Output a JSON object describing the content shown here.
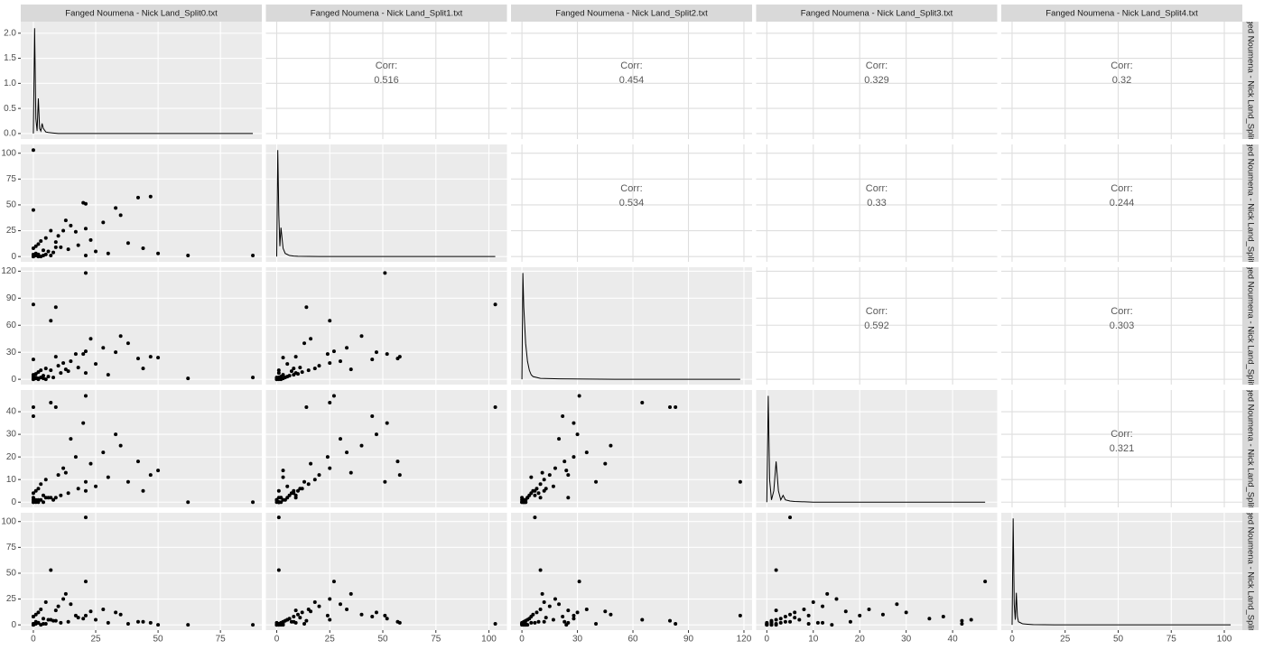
{
  "chart_data": {
    "type": "pairs",
    "variables": [
      "Fanged Noumena - Nick Land_Split0.txt",
      "Fanged Noumena - Nick Land_Split1.txt",
      "Fanged Noumena - Nick Land_Split2.txt",
      "Fanged Noumena - Nick Land_Split3.txt",
      "Fanged Noumena - Nick Land_Split4.txt"
    ],
    "axes": [
      {
        "lim": [
          -5.05,
          91.6
        ],
        "ticks": [
          0,
          25,
          50,
          75
        ]
      },
      {
        "lim": [
          -5.1,
          108.5
        ],
        "ticks": [
          0,
          25,
          50,
          75,
          100
        ]
      },
      {
        "lim": [
          -5.9,
          124.4
        ],
        "ticks": [
          0,
          30,
          60,
          90,
          120
        ]
      },
      {
        "lim": [
          -2.3,
          49.6
        ],
        "ticks": [
          0,
          10,
          20,
          30,
          40
        ]
      },
      {
        "lim": [
          -5.1,
          108.5
        ],
        "ticks": [
          0,
          25,
          50,
          75,
          100
        ]
      }
    ],
    "diag_ylim": [
      -0.11,
      2.23
    ],
    "diag_yticks": [
      {
        "value": 0,
        "label": "0.0"
      },
      {
        "value": 0.5,
        "label": "0.5"
      },
      {
        "value": 1,
        "label": "1.0"
      },
      {
        "value": 1.5,
        "label": "1.5"
      },
      {
        "value": 2,
        "label": "2.0"
      }
    ],
    "densities": [
      {
        "x": [
          0,
          0.5,
          1,
          1.5,
          2,
          2.5,
          3,
          3.5,
          4,
          5,
          6,
          8,
          10,
          20,
          40,
          88
        ],
        "y": [
          0,
          2.1,
          0.3,
          0.05,
          0.7,
          0.1,
          0.05,
          0.2,
          0.1,
          0.03,
          0.02,
          0.01,
          0,
          0,
          0,
          0
        ]
      },
      {
        "x": [
          0,
          0.5,
          1,
          1.5,
          2,
          3,
          4,
          5,
          6,
          8,
          10,
          20,
          50,
          103
        ],
        "y": [
          0,
          103,
          40,
          10,
          28,
          8,
          3,
          2,
          1,
          0.5,
          0.3,
          0,
          0,
          0
        ]
      },
      {
        "x": [
          0,
          0.5,
          1,
          2,
          3,
          4,
          5,
          6,
          8,
          10,
          20,
          50,
          118
        ],
        "y": [
          0,
          118,
          80,
          40,
          20,
          10,
          5,
          3,
          2,
          1,
          0.5,
          0,
          0
        ]
      },
      {
        "x": [
          0,
          0.3,
          0.6,
          1,
          1.5,
          2,
          2.5,
          3,
          3.5,
          4,
          5,
          6,
          10,
          20,
          47
        ],
        "y": [
          0,
          47,
          10,
          1,
          5,
          18,
          5,
          1,
          3,
          1,
          0.5,
          0.3,
          0,
          0,
          0
        ]
      },
      {
        "x": [
          0,
          0.5,
          1,
          1.5,
          2,
          2.5,
          3,
          4,
          5,
          8,
          10,
          20,
          50,
          103
        ],
        "y": [
          0,
          103,
          20,
          5,
          31,
          8,
          3,
          2,
          1,
          0.5,
          0.2,
          0,
          0,
          0
        ]
      }
    ],
    "corr_label": "Corr:",
    "correlations": [
      [
        0.516,
        0.454,
        0.329,
        0.32
      ],
      [
        0.534,
        0.33,
        0.244
      ],
      [
        0.592,
        0.303
      ],
      [
        0.321
      ]
    ],
    "observations": [
      [
        0,
        103,
        83,
        42,
        1
      ],
      [
        21,
        51,
        118,
        9,
        9
      ],
      [
        88,
        1,
        2,
        0,
        0
      ],
      [
        62,
        1,
        1,
        0,
        0
      ],
      [
        21,
        27,
        31,
        47,
        42
      ],
      [
        21,
        1,
        7,
        5,
        104
      ],
      [
        7,
        1,
        10,
        2,
        53
      ],
      [
        7,
        25,
        65,
        44,
        5
      ],
      [
        42,
        57,
        23,
        18,
        3
      ],
      [
        47,
        58,
        25,
        12,
        2
      ],
      [
        9,
        14,
        80,
        42,
        4
      ],
      [
        0,
        45,
        22,
        38,
        8
      ],
      [
        33,
        47,
        30,
        30,
        12
      ],
      [
        35,
        40,
        48,
        25,
        10
      ],
      [
        20,
        52,
        28,
        35,
        6
      ],
      [
        28,
        33,
        35,
        22,
        15
      ],
      [
        15,
        30,
        20,
        28,
        20
      ],
      [
        12,
        25,
        18,
        15,
        25
      ],
      [
        10,
        20,
        15,
        12,
        18
      ],
      [
        5,
        18,
        12,
        10,
        22
      ],
      [
        3,
        15,
        10,
        8,
        15
      ],
      [
        2,
        12,
        8,
        6,
        12
      ],
      [
        1,
        10,
        6,
        5,
        10
      ],
      [
        0,
        8,
        5,
        4,
        8
      ],
      [
        4,
        6,
        4,
        3,
        6
      ],
      [
        6,
        5,
        3,
        2,
        5
      ],
      [
        8,
        4,
        2,
        1,
        4
      ],
      [
        1,
        3,
        1,
        1,
        3
      ],
      [
        2,
        2,
        1,
        0,
        2
      ],
      [
        0,
        1,
        0,
        0,
        1
      ],
      [
        0,
        0,
        0,
        0,
        0
      ],
      [
        3,
        0,
        2,
        1,
        0
      ],
      [
        5,
        2,
        0,
        2,
        1
      ],
      [
        11,
        9,
        7,
        3,
        2
      ],
      [
        14,
        7,
        9,
        4,
        3
      ],
      [
        18,
        11,
        13,
        6,
        7
      ],
      [
        25,
        5,
        17,
        7,
        5
      ],
      [
        30,
        3,
        5,
        11,
        2
      ],
      [
        38,
        13,
        40,
        9,
        1
      ],
      [
        44,
        8,
        12,
        5,
        3
      ],
      [
        50,
        3,
        24,
        14,
        0
      ],
      [
        17,
        24,
        28,
        20,
        9
      ],
      [
        23,
        16,
        45,
        17,
        13
      ],
      [
        13,
        35,
        11,
        13,
        30
      ],
      [
        9,
        9,
        25,
        2,
        14
      ],
      [
        0,
        0,
        1,
        1,
        0
      ],
      [
        1,
        1,
        2,
        0,
        1
      ],
      [
        2,
        0,
        0,
        1,
        2
      ],
      [
        0,
        2,
        3,
        2,
        0
      ],
      [
        4,
        1,
        1,
        0,
        1
      ]
    ]
  }
}
